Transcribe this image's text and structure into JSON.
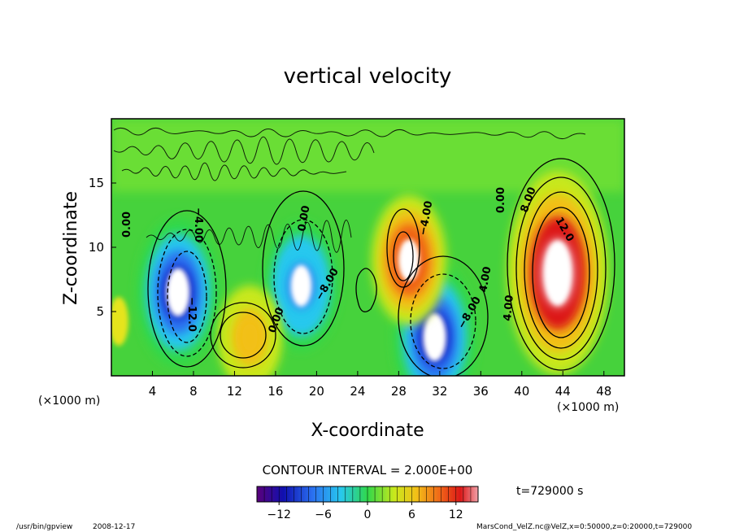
{
  "chart_data": {
    "type": "heatmap",
    "title": "vertical velocity",
    "xlabel": "X-coordinate",
    "ylabel": "Z-coordinate",
    "x_unit_left": "(×1000 m)",
    "x_unit_right": "(×1000 m)",
    "xlim": [
      0,
      50
    ],
    "ylim": [
      0,
      20
    ],
    "x_ticks": [
      4,
      8,
      12,
      16,
      20,
      24,
      28,
      32,
      36,
      40,
      44,
      48
    ],
    "y_ticks": [
      5,
      10,
      15
    ],
    "contour_interval_text": "CONTOUR INTERVAL = 2.000E+00",
    "time_text": "t=729000 s",
    "colorbar": {
      "min": -15,
      "max": 15,
      "tick_values": [
        -12,
        -6,
        0,
        6,
        12
      ],
      "tick_labels": [
        "−12",
        "−6",
        "0",
        "6",
        "12"
      ]
    },
    "features": [
      {
        "x": 6.5,
        "z": 6.5,
        "w": -13,
        "kind": "downdraft"
      },
      {
        "x": 18.5,
        "z": 7.0,
        "w": -10,
        "kind": "downdraft"
      },
      {
        "x": 31.5,
        "z": 3.0,
        "w": -13,
        "kind": "downdraft"
      },
      {
        "x": 29.0,
        "z": 9.0,
        "w": 10,
        "kind": "updraft"
      },
      {
        "x": 13.5,
        "z": 3.0,
        "w": 6,
        "kind": "updraft"
      },
      {
        "x": 43.5,
        "z": 8.0,
        "w": 14,
        "kind": "updraft"
      }
    ],
    "contour_labels": [
      "−4.00",
      "−12.0",
      "0.00",
      "−8.00",
      "4.00",
      "−8.00",
      "−4.00",
      "4.00",
      "8.00",
      "12.0",
      "0.00",
      "0.00",
      "0.00"
    ]
  },
  "footer": {
    "program": "/usr/bin/gpview",
    "date": "2008-12-17",
    "source": "MarsCond_VelZ.nc@VelZ,x=0:50000,z=0:20000,t=729000"
  }
}
